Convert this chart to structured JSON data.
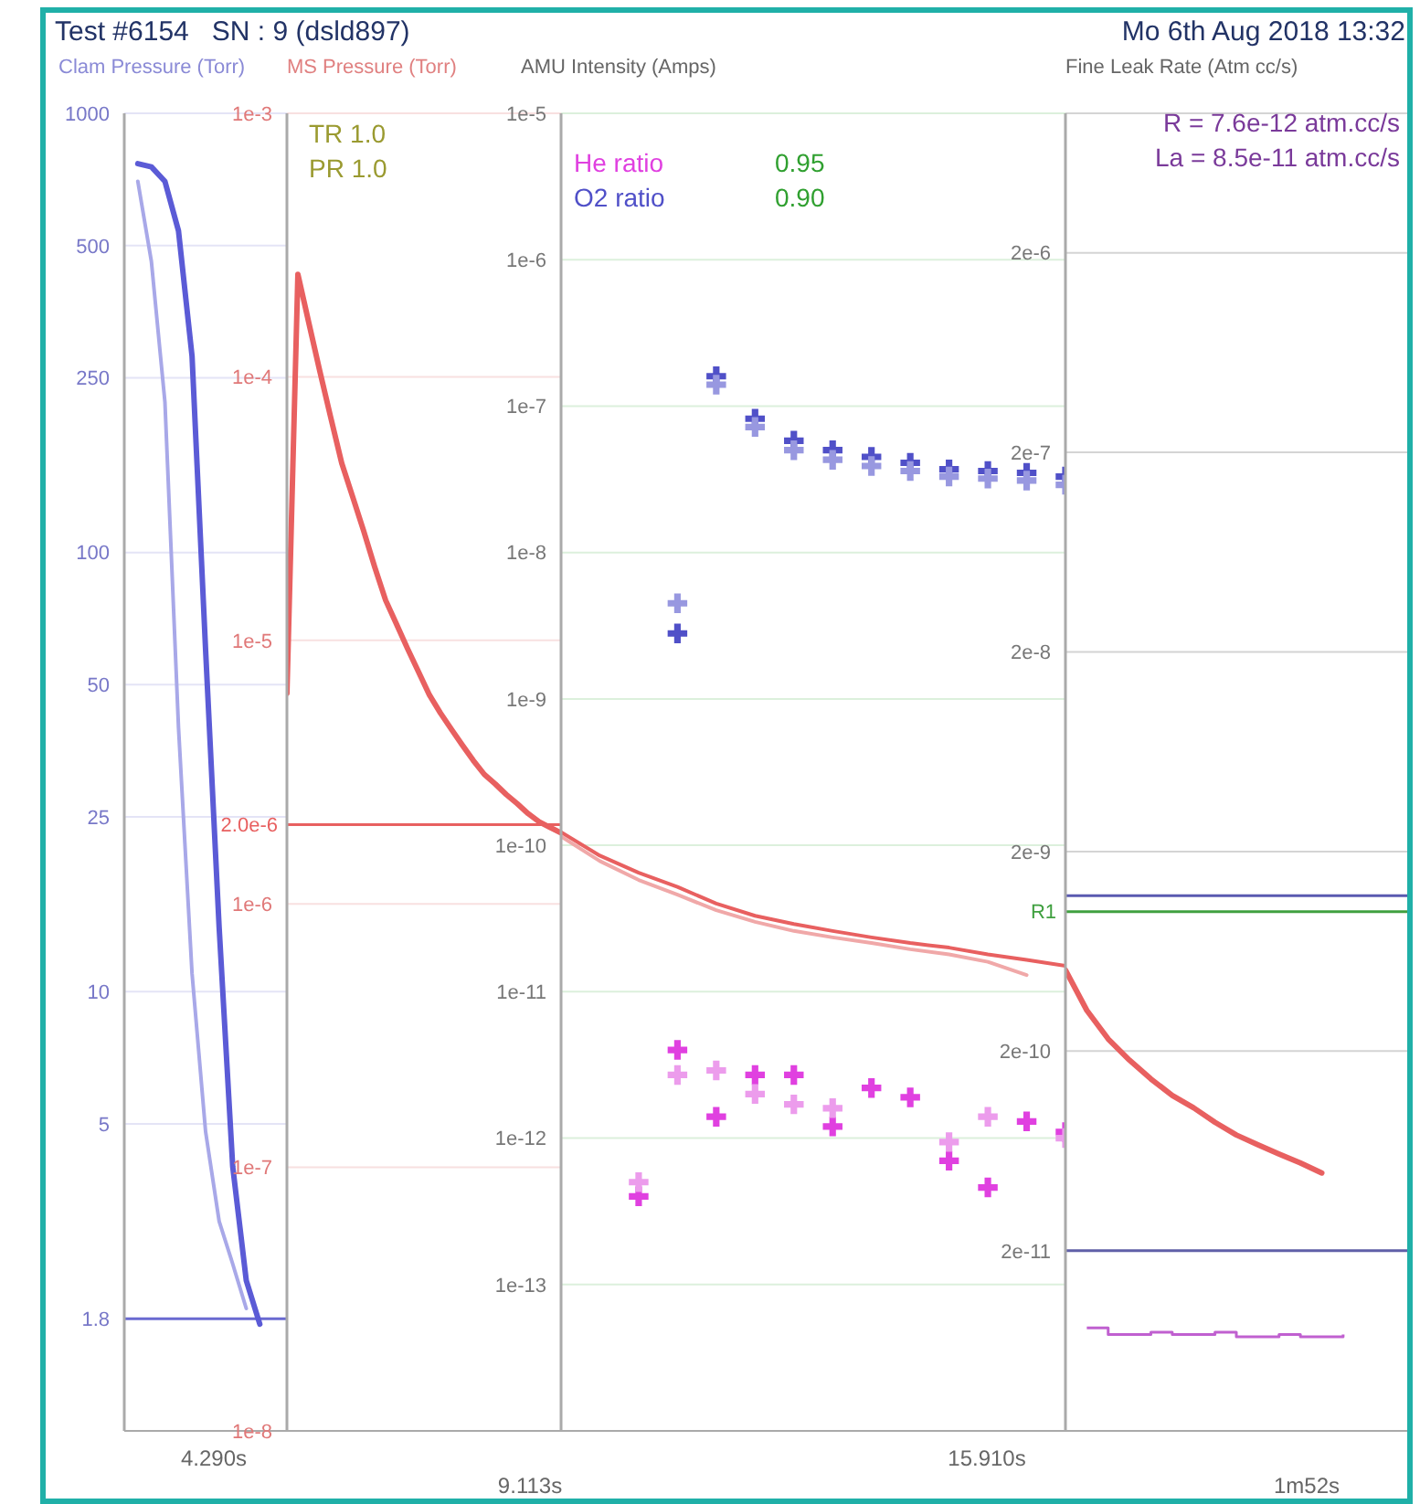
{
  "chart_data": [
    {
      "type": "line",
      "title": "Test #6154   SN : 9 (dsld897)",
      "ylabel": "Clam Pressure (Torr)",
      "log": "y",
      "grid": "y",
      "categories": [
        null,
        null,
        null,
        null,
        null,
        null,
        null,
        null,
        null,
        null,
        null,
        null,
        null
      ],
      "ylim": [
        1,
        1000
      ],
      "yticks": [
        {
          "value": 1000,
          "label": "1000"
        },
        {
          "value": 500,
          "label": "500"
        },
        {
          "value": 250,
          "label": "250"
        },
        {
          "value": 100,
          "label": "100"
        },
        {
          "value": 50,
          "label": "50"
        },
        {
          "value": 25,
          "label": "25"
        },
        {
          "value": 10,
          "label": "10"
        },
        {
          "value": 5,
          "label": "5"
        },
        {
          "value": 1.8,
          "label": "1.8"
        }
      ],
      "ref_lines": [
        {
          "axis": "y",
          "value": 1.8,
          "color": "#6a6ad0"
        }
      ],
      "annotations": [
        "4.290s"
      ],
      "series": [
        {
          "color": "#5b5bd6",
          "values": [
            null,
            768,
            755,
            700,
            540,
            280,
            60,
            14,
            4,
            2.2,
            1.75,
            null,
            null
          ]
        },
        {
          "color": "#a8a8e8",
          "values": [
            null,
            700,
            460,
            220,
            40,
            11,
            4.8,
            3,
            2.4,
            1.9,
            null,
            null,
            null
          ]
        }
      ]
    },
    {
      "type": "line",
      "ylabel": "MS Pressure (Torr)",
      "log": "y",
      "grid": "y",
      "categories": [
        null,
        null,
        null,
        null,
        null,
        null,
        null,
        null,
        null,
        null,
        null,
        null,
        null,
        null,
        null,
        null,
        null,
        null,
        null,
        null,
        null,
        null,
        null,
        null,
        null,
        null
      ],
      "ylim": [
        1e-08,
        0.001
      ],
      "yticks": [
        {
          "value": 0.001,
          "label": "1e-3"
        },
        {
          "value": 0.0001,
          "label": "1e-4"
        },
        {
          "value": 1e-05,
          "label": "1e-5"
        },
        {
          "value": 1e-06,
          "label": "1e-6"
        },
        {
          "value": 1e-07,
          "label": "1e-7"
        },
        {
          "value": 1e-08,
          "label": "1e-8"
        }
      ],
      "ref_lines": [
        {
          "axis": "y",
          "value": 2e-06,
          "label": "2.0e-6",
          "color": "#e86060"
        }
      ],
      "annotations": [
        "TR 1.0",
        "PR 1.0",
        "9.113s"
      ],
      "series": [
        {
          "color": "#e86060",
          "values": [
            6.3e-06,
            0.000245,
            0.00016,
            0.000105,
            7e-05,
            4.7e-05,
            3.5e-05,
            2.6e-05,
            1.9e-05,
            1.42e-05,
            1.15e-05,
            9.3e-06,
            7.6e-06,
            6.2e-06,
            5.3e-06,
            4.6e-06,
            4e-06,
            3.5e-06,
            3.1e-06,
            2.85e-06,
            2.6e-06,
            2.4e-06,
            2.2e-06,
            2.05e-06,
            1.95e-06,
            1.86e-06
          ]
        }
      ]
    },
    {
      "type": "scatter",
      "ylabel": "AMU Intensity (Amps)",
      "log": "y",
      "grid": "y",
      "legend": "top left",
      "categories": [
        null,
        null,
        null,
        null,
        null,
        null,
        null,
        null,
        null,
        null,
        null,
        null,
        null,
        null
      ],
      "ylim": [
        1e-14,
        1e-05
      ],
      "yticks": [
        {
          "value": 1e-05,
          "label": "1e-5"
        },
        {
          "value": 1e-06,
          "label": "1e-6"
        },
        {
          "value": 1e-07,
          "label": "1e-7"
        },
        {
          "value": 1e-08,
          "label": "1e-8"
        },
        {
          "value": 1e-09,
          "label": "1e-9"
        },
        {
          "value": 1e-10,
          "label": "1e-10"
        },
        {
          "value": 1e-11,
          "label": "1e-11"
        },
        {
          "value": 1e-12,
          "label": "1e-12"
        },
        {
          "value": 1e-13,
          "label": "1e-13"
        },
        {
          "value": 1e-14,
          "label": null
        }
      ],
      "annotations": [
        "0.95",
        "0.90",
        "15.910s"
      ],
      "series": [
        {
          "name": "He ratio",
          "color": "#e040e0",
          "marker": "cross",
          "values": [
            null,
            null,
            4e-13,
            4e-12,
            1.4e-12,
            2.7e-12,
            2.7e-12,
            1.2e-12,
            2.2e-12,
            1.9e-12,
            7e-13,
            4.6e-13,
            1.3e-12,
            1.1e-12
          ]
        },
        {
          "name": "O2 ratio",
          "color": "#5050c8",
          "marker": "cross",
          "values": [
            null,
            null,
            null,
            2.8e-09,
            1.6e-07,
            8.2e-08,
            5.8e-08,
            5e-08,
            4.5e-08,
            4.1e-08,
            3.7e-08,
            3.6e-08,
            3.5e-08,
            3.3e-08
          ]
        },
        {
          "color": "#ec9cec",
          "marker": "cross",
          "values": [
            null,
            null,
            5e-13,
            2.7e-12,
            2.9e-12,
            2e-12,
            1.7e-12,
            1.6e-12,
            null,
            null,
            9.4e-13,
            1.4e-12,
            null,
            1e-12
          ]
        },
        {
          "color": "#9898e0",
          "marker": "cross",
          "values": [
            null,
            null,
            null,
            4.5e-09,
            1.4e-07,
            7.2e-08,
            5e-08,
            4.3e-08,
            3.9e-08,
            3.6e-08,
            3.3e-08,
            3.2e-08,
            3.1e-08,
            2.9e-08
          ]
        },
        {
          "type": "line",
          "color": "#f0a8a8",
          "values": [
            1.15e-10,
            7.8e-11,
            5.8e-11,
            4.6e-11,
            3.6e-11,
            3e-11,
            2.6e-11,
            2.35e-11,
            2.15e-11,
            1.95e-11,
            1.8e-11,
            1.6e-11,
            1.3e-11,
            null
          ]
        },
        {
          "type": "line",
          "color": "#e86060",
          "values": [
            1.23e-10,
            8.5e-11,
            6.5e-11,
            5.2e-11,
            4e-11,
            3.3e-11,
            2.9e-11,
            2.6e-11,
            2.35e-11,
            2.15e-11,
            2e-11,
            1.8e-11,
            1.65e-11,
            1.5e-11
          ]
        }
      ]
    },
    {
      "type": "line",
      "subtitle": "Mo 6th Aug 2018 13:32",
      "ylabel": "Fine Leak Rate (Atm cc/s)",
      "log": "y",
      "grid": "y",
      "categories": [
        null,
        null,
        null,
        null,
        null,
        null,
        null,
        null,
        null,
        null,
        null,
        null,
        null,
        null,
        null,
        null,
        null
      ],
      "ylim": [
        2.5e-12,
        1e-05
      ],
      "yticks": [
        {
          "value": 2e-06,
          "label": "2e-6"
        },
        {
          "value": 2e-07,
          "label": "2e-7"
        },
        {
          "value": 2e-08,
          "label": "2e-8"
        },
        {
          "value": 2e-09,
          "label": "2e-9"
        },
        {
          "value": 2e-10,
          "label": "2e-10"
        },
        {
          "value": 2e-11,
          "label": "2e-11"
        }
      ],
      "ref_lines": [
        {
          "axis": "y",
          "value": 1.2e-09,
          "color": "#5a5ab0"
        },
        {
          "axis": "y",
          "value": 1e-09,
          "label": "R1",
          "color": "#40a040"
        },
        {
          "axis": "y",
          "value": 2e-11,
          "color": "#6060a8"
        }
      ],
      "annotations": [
        "R = 7.6e-12 atm.cc/s",
        "La = 8.5e-11 atm.cc/s",
        "1m52s"
      ],
      "series": [
        {
          "color": "#e86060",
          "values": [
            5.1e-10,
            3.2e-10,
            2.3e-10,
            1.8e-10,
            1.45e-10,
            1.2e-10,
            1.04e-10,
            8.8e-11,
            7.6e-11,
            6.8e-11,
            6.1e-11,
            5.5e-11,
            4.9e-11,
            null,
            null,
            null,
            null
          ]
        },
        {
          "type": "step",
          "color": "#c060d0",
          "values": [
            null,
            8.2e-12,
            7.6e-12,
            7.6e-12,
            7.8e-12,
            7.6e-12,
            7.6e-12,
            7.8e-12,
            7.4e-12,
            7.4e-12,
            7.6e-12,
            7.4e-12,
            7.4e-12,
            7.6e-12,
            null,
            null,
            null
          ]
        }
      ]
    }
  ]
}
